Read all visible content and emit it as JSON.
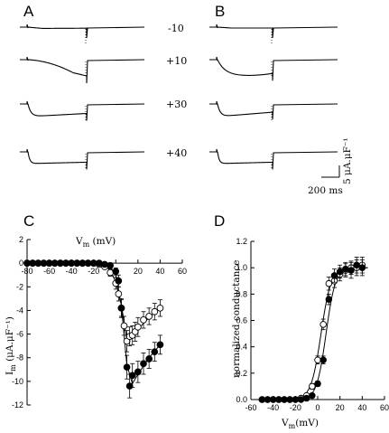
{
  "panels": {
    "A": "A",
    "B": "B",
    "C": "C",
    "D": "D"
  },
  "voltage_labels": [
    "-10",
    "+10",
    "+30",
    "+40"
  ],
  "scale_bar": {
    "time_label": "200 ms",
    "current_label": "5 μA.μF⁻¹"
  },
  "chart_data": [
    {
      "id": "C",
      "type": "scatter",
      "title": "",
      "xlabel_main": "V",
      "xlabel_sub": "m",
      "xlabel_unit": " (mV)",
      "ylabel_main": "I",
      "ylabel_sub": "m",
      "ylabel_unit": " (μA.μF⁻¹)",
      "xlim": [
        -80,
        60
      ],
      "ylim": [
        -12,
        2
      ],
      "xticks": [
        "-80",
        "-60",
        "-40",
        "-20",
        "0",
        "20",
        "40",
        "60"
      ],
      "yticks": [
        "2",
        "0",
        "-2",
        "-4",
        "-6",
        "-8",
        "-10",
        "-12"
      ],
      "series": [
        {
          "marker": "open-circle",
          "x": [
            -80,
            -75,
            -70,
            -65,
            -60,
            -55,
            -50,
            -45,
            -40,
            -35,
            -30,
            -25,
            -20,
            -15,
            -10,
            -5,
            0,
            2.5,
            5,
            7.5,
            10,
            12.5,
            15,
            17.5,
            20,
            25,
            30,
            35,
            40
          ],
          "y": [
            0,
            0,
            0,
            0,
            0,
            0,
            0,
            0,
            0,
            0,
            0,
            0,
            0,
            -0.1,
            -0.3,
            -0.8,
            -1.7,
            -2.6,
            -3.8,
            -5.3,
            -6.6,
            -6.2,
            -6.1,
            -5.8,
            -5.4,
            -4.8,
            -4.5,
            -4.1,
            -3.8
          ],
          "err": [
            0,
            0,
            0,
            0,
            0,
            0,
            0,
            0,
            0,
            0,
            0,
            0,
            0,
            0.1,
            0.15,
            0.3,
            0.5,
            0.6,
            0.7,
            0.8,
            0.9,
            0.8,
            0.8,
            0.8,
            0.8,
            0.7,
            0.7,
            0.7,
            0.7
          ]
        },
        {
          "marker": "filled-circle",
          "x": [
            -80,
            -75,
            -70,
            -65,
            -60,
            -55,
            -50,
            -45,
            -40,
            -35,
            -30,
            -25,
            -20,
            -15,
            -10,
            -5,
            0,
            2.5,
            5,
            10,
            12.5,
            15,
            20,
            25,
            30,
            35,
            40
          ],
          "y": [
            0,
            0,
            0,
            0,
            0,
            0,
            0,
            0,
            0,
            0,
            0,
            0,
            0,
            0,
            -0.1,
            -0.2,
            -0.7,
            -1.5,
            -3.8,
            -8.8,
            -10.4,
            -9.5,
            -9.2,
            -8.5,
            -8.1,
            -7.5,
            -6.9
          ],
          "err": [
            0,
            0,
            0,
            0,
            0,
            0,
            0,
            0,
            0,
            0,
            0,
            0,
            0,
            0,
            0.05,
            0.1,
            0.3,
            0.5,
            0.8,
            1.0,
            1.0,
            1.0,
            0.9,
            0.9,
            0.8,
            0.8,
            0.8
          ]
        }
      ],
      "fit_curves": [
        {
          "x": [
            -80,
            -20,
            -10,
            -5,
            0,
            5,
            10,
            15,
            20,
            30,
            40
          ],
          "y": [
            0,
            0,
            -0.2,
            -0.6,
            -1.6,
            -3.5,
            -6.5,
            -6.3,
            -5.6,
            -4.6,
            -3.8
          ]
        },
        {
          "x": [
            -80,
            -20,
            -10,
            -5,
            0,
            5,
            10,
            15,
            20,
            30,
            40
          ],
          "y": [
            0,
            0,
            -0.1,
            -0.3,
            -1.0,
            -3.6,
            -8.6,
            -10.2,
            -9.4,
            -8.0,
            -6.9
          ]
        }
      ]
    },
    {
      "id": "D",
      "type": "scatter",
      "title": "",
      "xlabel_main": "V",
      "xlabel_sub": "m",
      "xlabel_unit": "(mV)",
      "ylabel": "normalized conductance",
      "xlim": [
        -60,
        60
      ],
      "ylim": [
        0,
        1.2
      ],
      "xticks": [
        "-60",
        "-40",
        "-20",
        "0",
        "20",
        "40",
        "60"
      ],
      "yticks": [
        "0.0",
        "0.2",
        "0.4",
        "0.6",
        "0.8",
        "1.0",
        "1.2"
      ],
      "series": [
        {
          "marker": "open-circle",
          "x": [
            -50,
            -45,
            -40,
            -35,
            -30,
            -25,
            -20,
            -15,
            -10,
            -5,
            0,
            5,
            10,
            15,
            20,
            25,
            30,
            35,
            40
          ],
          "y": [
            0.0,
            0.0,
            0.0,
            0.0,
            0.0,
            0.0,
            0.0,
            0.01,
            0.03,
            0.1,
            0.3,
            0.57,
            0.88,
            0.9,
            0.95,
            0.98,
            1.0,
            1.0,
            1.02
          ],
          "err": [
            0,
            0,
            0,
            0,
            0,
            0,
            0,
            0,
            0.01,
            0.02,
            0.03,
            0.04,
            0.05,
            0.05,
            0.05,
            0.05,
            0.05,
            0.06,
            0.06
          ]
        },
        {
          "marker": "filled-circle",
          "x": [
            -50,
            -45,
            -40,
            -35,
            -30,
            -25,
            -20,
            -15,
            -10,
            -5,
            0,
            5,
            10,
            15,
            20,
            25,
            30,
            35,
            40
          ],
          "y": [
            0.0,
            0.0,
            0.0,
            0.0,
            0.0,
            0.0,
            0.0,
            0.0,
            0.01,
            0.03,
            0.12,
            0.3,
            0.76,
            0.94,
            0.97,
            0.99,
            0.98,
            1.02,
            1.0
          ],
          "err": [
            0,
            0,
            0,
            0,
            0,
            0,
            0,
            0,
            0,
            0.01,
            0.02,
            0.03,
            0.04,
            0.05,
            0.05,
            0.05,
            0.06,
            0.06,
            0.06
          ]
        }
      ]
    }
  ]
}
